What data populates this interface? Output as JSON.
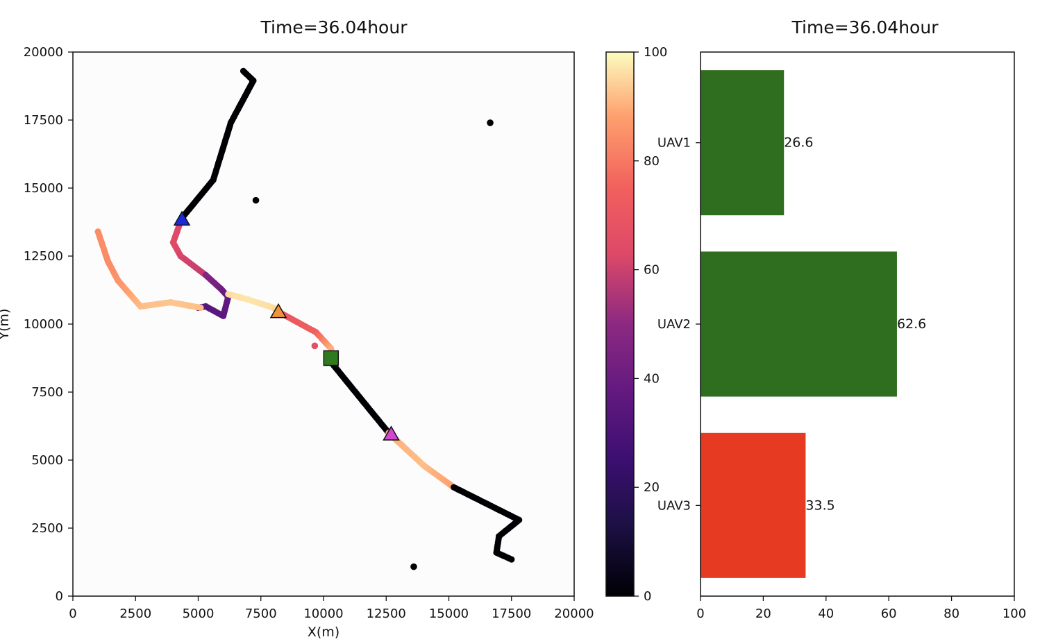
{
  "chart_data": [
    {
      "type": "scatter",
      "title": "Time=36.04hour",
      "xlabel": "X(m)",
      "ylabel": "Y(m)",
      "xlim": [
        0,
        20000
      ],
      "ylim": [
        0,
        20000
      ],
      "xticks": [
        0,
        2500,
        5000,
        7500,
        10000,
        12500,
        15000,
        17500,
        20000
      ],
      "yticks": [
        0,
        2500,
        5000,
        7500,
        10000,
        12500,
        15000,
        17500,
        20000
      ],
      "grid": false,
      "colormap": "magma",
      "trails": [
        {
          "points": [
            [
              6800,
              19300
            ],
            [
              7200,
              18950
            ],
            [
              6300,
              17400
            ],
            [
              5600,
              15300
            ],
            [
              4350,
              13900
            ]
          ],
          "values": [
            0,
            0,
            0,
            0,
            0
          ]
        },
        {
          "points": [
            [
              4350,
              13900
            ],
            [
              4000,
              13000
            ],
            [
              4300,
              12500
            ],
            [
              5300,
              11800
            ]
          ],
          "values": [
            62,
            64,
            62,
            58
          ]
        },
        {
          "points": [
            [
              5300,
              11800
            ],
            [
              5900,
              11300
            ],
            [
              6200,
              11000
            ],
            [
              6000,
              10300
            ],
            [
              5300,
              10650
            ],
            [
              5000,
              10600
            ]
          ],
          "values": [
            48,
            42,
            38,
            36,
            34,
            32
          ]
        },
        {
          "points": [
            [
              6200,
              11100
            ],
            [
              7000,
              10900
            ],
            [
              8000,
              10600
            ],
            [
              8300,
              10400
            ]
          ],
          "values": [
            96,
            97,
            96,
            94
          ]
        },
        {
          "points": [
            [
              8300,
              10400
            ],
            [
              9700,
              9700
            ],
            [
              10300,
              9100
            ]
          ],
          "values": [
            70,
            74,
            90
          ]
        },
        {
          "points": [
            [
              5100,
              10600
            ],
            [
              3900,
              10800
            ],
            [
              2700,
              10650
            ],
            [
              1800,
              11600
            ],
            [
              1400,
              12300
            ],
            [
              1000,
              13400
            ]
          ],
          "values": [
            92,
            93,
            92,
            86,
            84,
            84
          ]
        },
        {
          "points": [
            [
              10300,
              8600
            ],
            [
              12600,
              6000
            ]
          ],
          "values": [
            0,
            0
          ]
        },
        {
          "points": [
            [
              12600,
              6000
            ],
            [
              14000,
              4800
            ],
            [
              15200,
              4000
            ]
          ],
          "values": [
            90,
            92,
            88
          ]
        },
        {
          "points": [
            [
              15200,
              4000
            ],
            [
              17800,
              2800
            ],
            [
              17000,
              2200
            ],
            [
              16900,
              1600
            ],
            [
              17500,
              1350
            ]
          ],
          "values": [
            0,
            0,
            0,
            0,
            0
          ]
        }
      ],
      "points": [
        {
          "x": 16650,
          "y": 17400,
          "value": 0
        },
        {
          "x": 7300,
          "y": 14550,
          "value": 0
        },
        {
          "x": 13600,
          "y": 1080,
          "value": 0
        },
        {
          "x": 9650,
          "y": 9200,
          "value": 66
        }
      ],
      "markers": [
        {
          "shape": "triangle",
          "x": 4350,
          "y": 13850,
          "color": "#1a2bd6"
        },
        {
          "shape": "triangle",
          "x": 8200,
          "y": 10450,
          "color": "#f0933c"
        },
        {
          "shape": "triangle",
          "x": 12700,
          "y": 5950,
          "color": "#d246d2"
        },
        {
          "shape": "square",
          "x": 10300,
          "y": 8750,
          "color": "#2f7a1f"
        }
      ]
    },
    {
      "type": "bar",
      "orientation": "horizontal",
      "title": "Time=36.04hour",
      "categories": [
        "UAV1",
        "UAV2",
        "UAV3"
      ],
      "values": [
        26.6,
        62.6,
        33.5
      ],
      "data_labels": [
        "26.6",
        "62.6",
        "33.5"
      ],
      "colors": [
        "#2e6e1e",
        "#2e6e1e",
        "#e63a23"
      ],
      "xlim": [
        0,
        100
      ],
      "xticks": [
        0,
        20,
        40,
        60,
        80,
        100
      ],
      "grid": false
    }
  ],
  "colorbar": {
    "colormap": "magma",
    "range": [
      0,
      100
    ],
    "ticks": [
      0,
      20,
      40,
      60,
      80,
      100
    ]
  }
}
